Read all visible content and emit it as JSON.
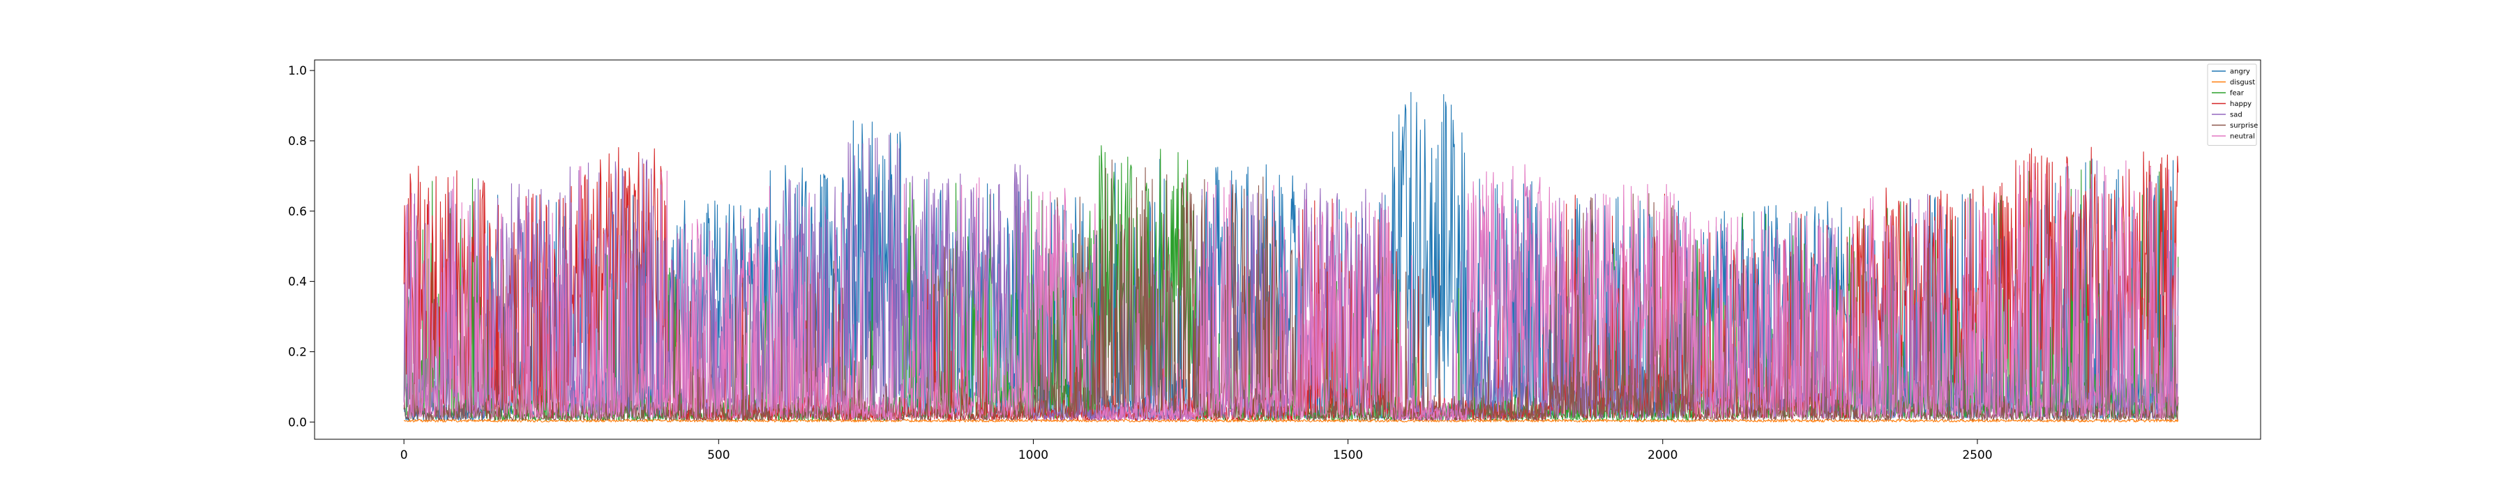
{
  "chart_data": {
    "type": "line",
    "title": "",
    "xlabel": "",
    "ylabel": "",
    "xlim": [
      -142,
      2950
    ],
    "ylim": [
      -0.049,
      1.03
    ],
    "xticks": [
      0,
      500,
      1000,
      1500,
      2000,
      2500
    ],
    "yticks": [
      0.0,
      0.2,
      0.4,
      0.6,
      0.8,
      1.0
    ],
    "x_ticklabels": [
      "0",
      "500",
      "1000",
      "1500",
      "2000",
      "2500"
    ],
    "y_ticklabels": [
      "0.0",
      "0.2",
      "0.4",
      "0.6",
      "0.8",
      "1.0"
    ],
    "grid": false,
    "legend_position": "top-right",
    "n_points": 2820,
    "series": [
      {
        "name": "angry",
        "color": "#1f77b4"
      },
      {
        "name": "disgust",
        "color": "#ff7f0e"
      },
      {
        "name": "fear",
        "color": "#2ca02c"
      },
      {
        "name": "happy",
        "color": "#d62728"
      },
      {
        "name": "sad",
        "color": "#9467bd"
      },
      {
        "name": "surprise",
        "color": "#8c564b"
      },
      {
        "name": "neutral",
        "color": "#e377c2"
      }
    ],
    "segments": [
      {
        "start": 0,
        "end": 130,
        "high": [
          3,
          6,
          4,
          2
        ],
        "high_level": 0.7
      },
      {
        "start": 130,
        "end": 260,
        "high": [
          4,
          3,
          6,
          0
        ],
        "high_level": 0.65
      },
      {
        "start": 260,
        "end": 420,
        "high": [
          3,
          4,
          0,
          6
        ],
        "high_level": 0.75
      },
      {
        "start": 420,
        "end": 580,
        "high": [
          0,
          6,
          4
        ],
        "high_level": 0.6
      },
      {
        "start": 580,
        "end": 700,
        "high": [
          0,
          4,
          6
        ],
        "high_level": 0.7
      },
      {
        "start": 700,
        "end": 790,
        "high": [
          0,
          4
        ],
        "high_level": 0.85
      },
      {
        "start": 790,
        "end": 1000,
        "high": [
          4,
          0,
          2,
          6
        ],
        "high_level": 0.7
      },
      {
        "start": 1000,
        "end": 1100,
        "high": [
          6,
          0,
          5,
          2
        ],
        "high_level": 0.65
      },
      {
        "start": 1100,
        "end": 1260,
        "high": [
          2,
          5,
          0
        ],
        "high_level": 0.75
      },
      {
        "start": 1260,
        "end": 1420,
        "high": [
          0,
          5,
          4,
          6
        ],
        "high_level": 0.7
      },
      {
        "start": 1420,
        "end": 1570,
        "high": [
          4,
          6,
          3,
          0
        ],
        "high_level": 0.65
      },
      {
        "start": 1570,
        "end": 1690,
        "high": [
          0
        ],
        "high_level": 0.9
      },
      {
        "start": 1690,
        "end": 1820,
        "high": [
          6,
          0,
          4
        ],
        "high_level": 0.7
      },
      {
        "start": 1820,
        "end": 2050,
        "high": [
          6,
          0,
          4,
          3,
          5
        ],
        "high_level": 0.65
      },
      {
        "start": 2050,
        "end": 2300,
        "high": [
          0,
          6,
          4,
          3,
          2
        ],
        "high_level": 0.6
      },
      {
        "start": 2300,
        "end": 2560,
        "high": [
          3,
          6,
          0,
          2,
          4
        ],
        "high_level": 0.65
      },
      {
        "start": 2560,
        "end": 2820,
        "high": [
          3,
          6,
          0,
          2,
          4
        ],
        "high_level": 0.75
      }
    ]
  }
}
